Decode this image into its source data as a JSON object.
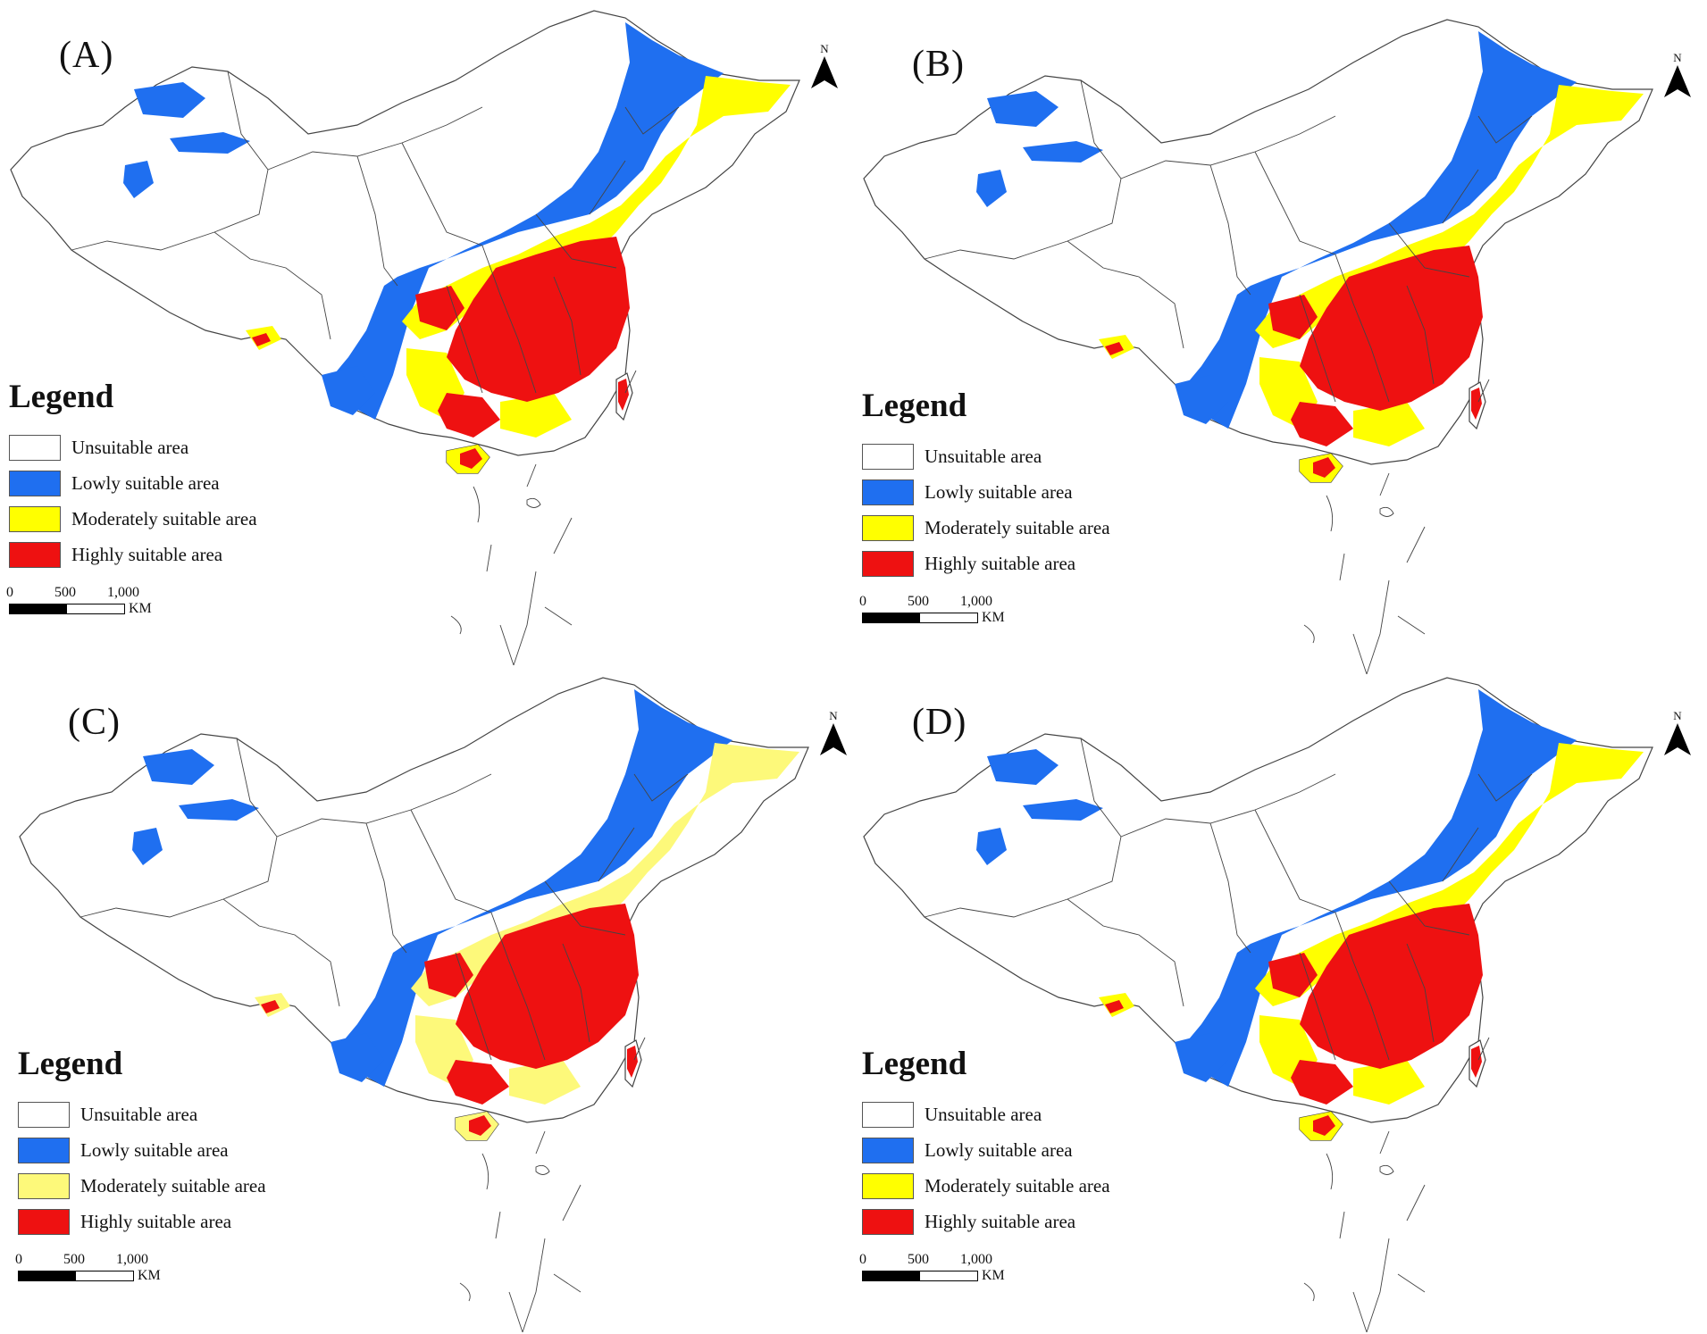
{
  "legend": {
    "title": "Legend",
    "items": [
      {
        "label": "Unsuitable area",
        "key": "unsuitable"
      },
      {
        "label": "Lowly suitable area",
        "key": "low"
      },
      {
        "label": "Moderately suitable area",
        "key": "moderate"
      },
      {
        "label": "Highly suitable area",
        "key": "high"
      }
    ]
  },
  "north_label": "N",
  "scale": {
    "ticks": [
      "0",
      "500",
      "1,000"
    ],
    "unit": "KM"
  },
  "colors": {
    "boundary": "#444444",
    "unsuitable": "#ffffff",
    "low": "#1f6ff0",
    "high": "#ee1111"
  },
  "panels": [
    {
      "label": "(A)",
      "moderate_color": "#ffff00"
    },
    {
      "label": "(B)",
      "moderate_color": "#ffff00"
    },
    {
      "label": "(C)",
      "moderate_color": "#fdf97a"
    },
    {
      "label": "(D)",
      "moderate_color": "#ffff00"
    }
  ]
}
